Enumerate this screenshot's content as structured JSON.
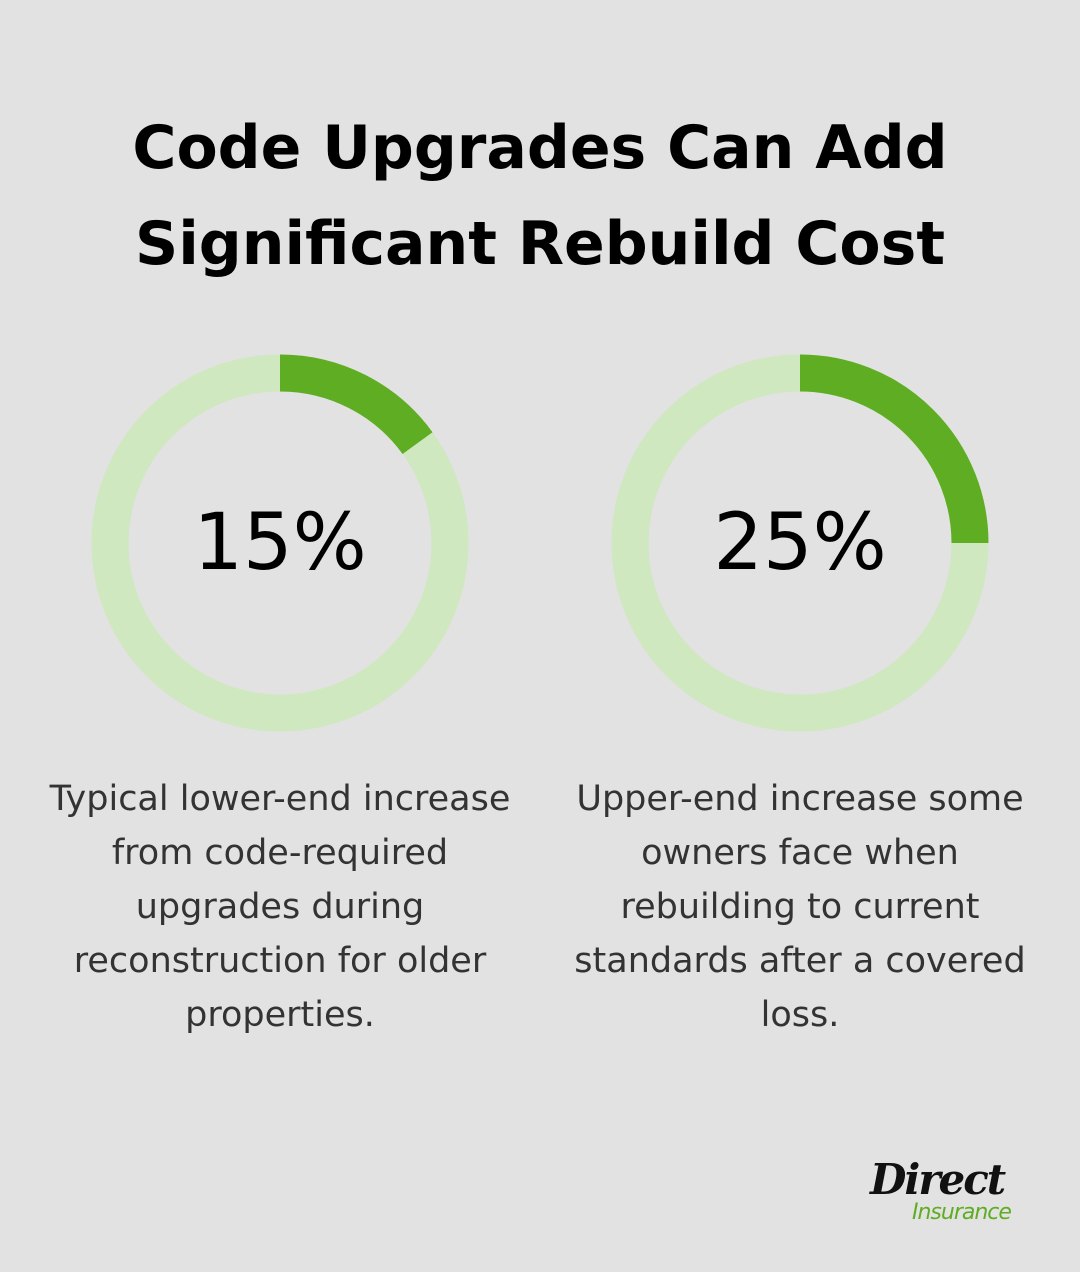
{
  "title": "Code Upgrades Can Add Significant Rebuild Cost",
  "chart_data": [
    {
      "type": "donut",
      "values": [
        15
      ],
      "value_labels": [
        "15%"
      ],
      "color": "#5fad23",
      "track_color": "#cfe8bf",
      "caption": "Typical lower-end increase from code-required upgrades during reconstruction for older properties."
    },
    {
      "type": "donut",
      "values": [
        25
      ],
      "value_labels": [
        "25%"
      ],
      "color": "#5fad23",
      "track_color": "#cfe8bf",
      "caption": "Upper-end increase some owners face when rebuilding to current standards after a covered loss."
    }
  ],
  "logo": {
    "name": "Direct",
    "tagline": "Insurance"
  }
}
